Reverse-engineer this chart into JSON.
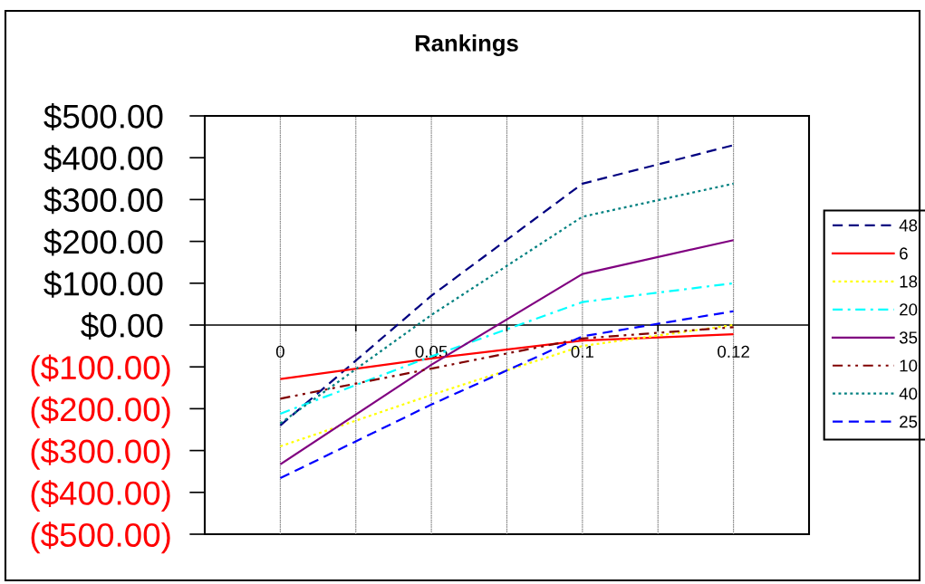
{
  "chart_data": {
    "type": "line",
    "title": "Rankings",
    "categories": [
      "0",
      "0.05",
      "0.1",
      "0.12"
    ],
    "ylim": [
      -500,
      500
    ],
    "yticks": [
      {
        "value": -500,
        "label": "($500.00)"
      },
      {
        "value": -400,
        "label": "($400.00)"
      },
      {
        "value": -300,
        "label": "($300.00)"
      },
      {
        "value": -200,
        "label": "($200.00)"
      },
      {
        "value": -100,
        "label": "($100.00)"
      },
      {
        "value": 0,
        "label": "$0.00"
      },
      {
        "value": 100,
        "label": "$100.00"
      },
      {
        "value": 200,
        "label": "$200.00"
      },
      {
        "value": 300,
        "label": "$300.00"
      },
      {
        "value": 400,
        "label": "$400.00"
      },
      {
        "value": 500,
        "label": "$500.00"
      }
    ],
    "grid": "x",
    "legend": "right",
    "series": [
      {
        "name": "48",
        "color": "#000080",
        "line_style": "dashed",
        "values": [
          -240,
          70,
          338,
          430
        ]
      },
      {
        "name": "6",
        "color": "#ff0000",
        "line_style": "solid",
        "values": [
          -129,
          -80,
          -37,
          -22
        ]
      },
      {
        "name": "18",
        "color": "#ffff00",
        "line_style": "dotted",
        "values": [
          -290,
          -167,
          -50,
          0
        ]
      },
      {
        "name": "20",
        "color": "#00ffff",
        "line_style": "dashdot",
        "values": [
          -212,
          -75,
          55,
          100
        ]
      },
      {
        "name": "35",
        "color": "#800080",
        "line_style": "solid",
        "values": [
          -333,
          -95,
          122,
          203
        ]
      },
      {
        "name": "10",
        "color": "#800000",
        "line_style": "dashdotdot",
        "values": [
          -176,
          -104,
          -32,
          -5
        ]
      },
      {
        "name": "40",
        "color": "#008080",
        "line_style": "dotted",
        "values": [
          -235,
          24,
          259,
          338
        ]
      },
      {
        "name": "25",
        "color": "#0000ff",
        "line_style": "dashed",
        "values": [
          -366,
          -190,
          -27,
          33
        ]
      }
    ]
  }
}
